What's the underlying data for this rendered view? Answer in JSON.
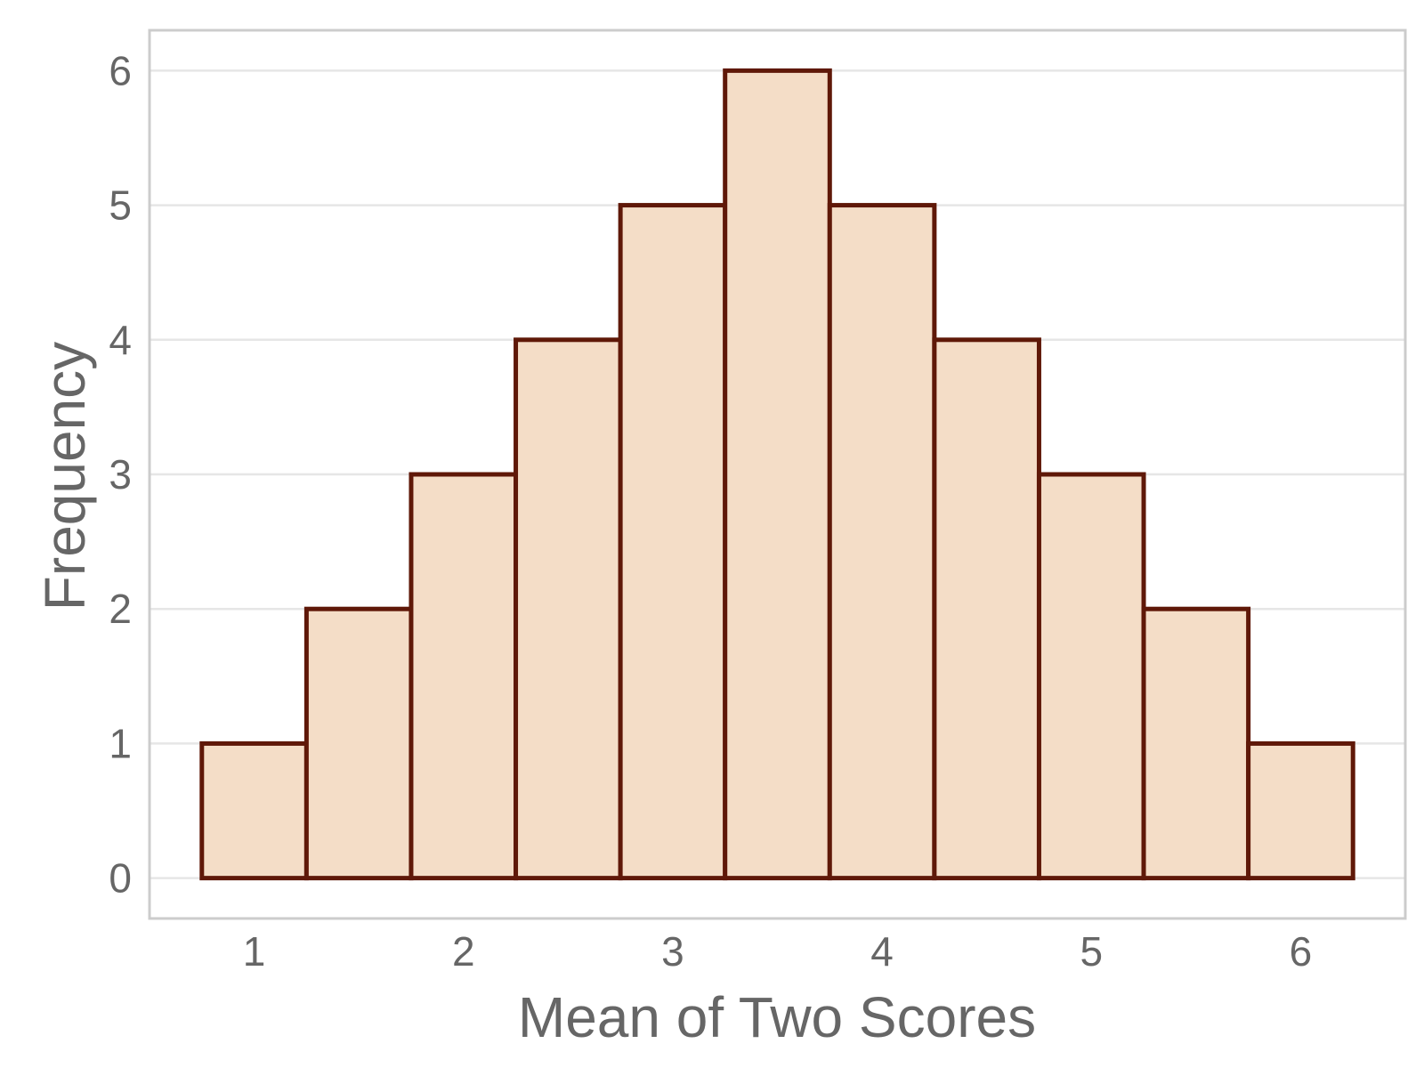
{
  "chart_data": {
    "type": "bar",
    "subtype": "histogram",
    "xlabel": "Mean of Two Scores",
    "ylabel": "Frequency",
    "x_ticks": [
      1,
      2,
      3,
      4,
      5,
      6
    ],
    "y_ticks": [
      0,
      1,
      2,
      3,
      4,
      5,
      6
    ],
    "xlim": [
      0.5,
      6.5
    ],
    "ylim": [
      -0.3,
      6.3
    ],
    "grid": {
      "horizontal": true,
      "vertical": false
    },
    "bins": [
      {
        "start": 0.75,
        "end": 1.25,
        "value": 1
      },
      {
        "start": 1.25,
        "end": 1.75,
        "value": 2
      },
      {
        "start": 1.75,
        "end": 2.25,
        "value": 3
      },
      {
        "start": 2.25,
        "end": 2.75,
        "value": 4
      },
      {
        "start": 2.75,
        "end": 3.25,
        "value": 5
      },
      {
        "start": 3.25,
        "end": 3.75,
        "value": 6
      },
      {
        "start": 3.75,
        "end": 4.25,
        "value": 5
      },
      {
        "start": 4.25,
        "end": 4.75,
        "value": 4
      },
      {
        "start": 4.75,
        "end": 5.25,
        "value": 3
      },
      {
        "start": 5.25,
        "end": 5.75,
        "value": 2
      },
      {
        "start": 5.75,
        "end": 6.25,
        "value": 1
      }
    ],
    "colors": {
      "bar_fill": "#f4ddc7",
      "bar_stroke": "#5f1808",
      "grid": "#e6e6e6",
      "panel_border": "#cccccc",
      "text": "#666666"
    }
  }
}
